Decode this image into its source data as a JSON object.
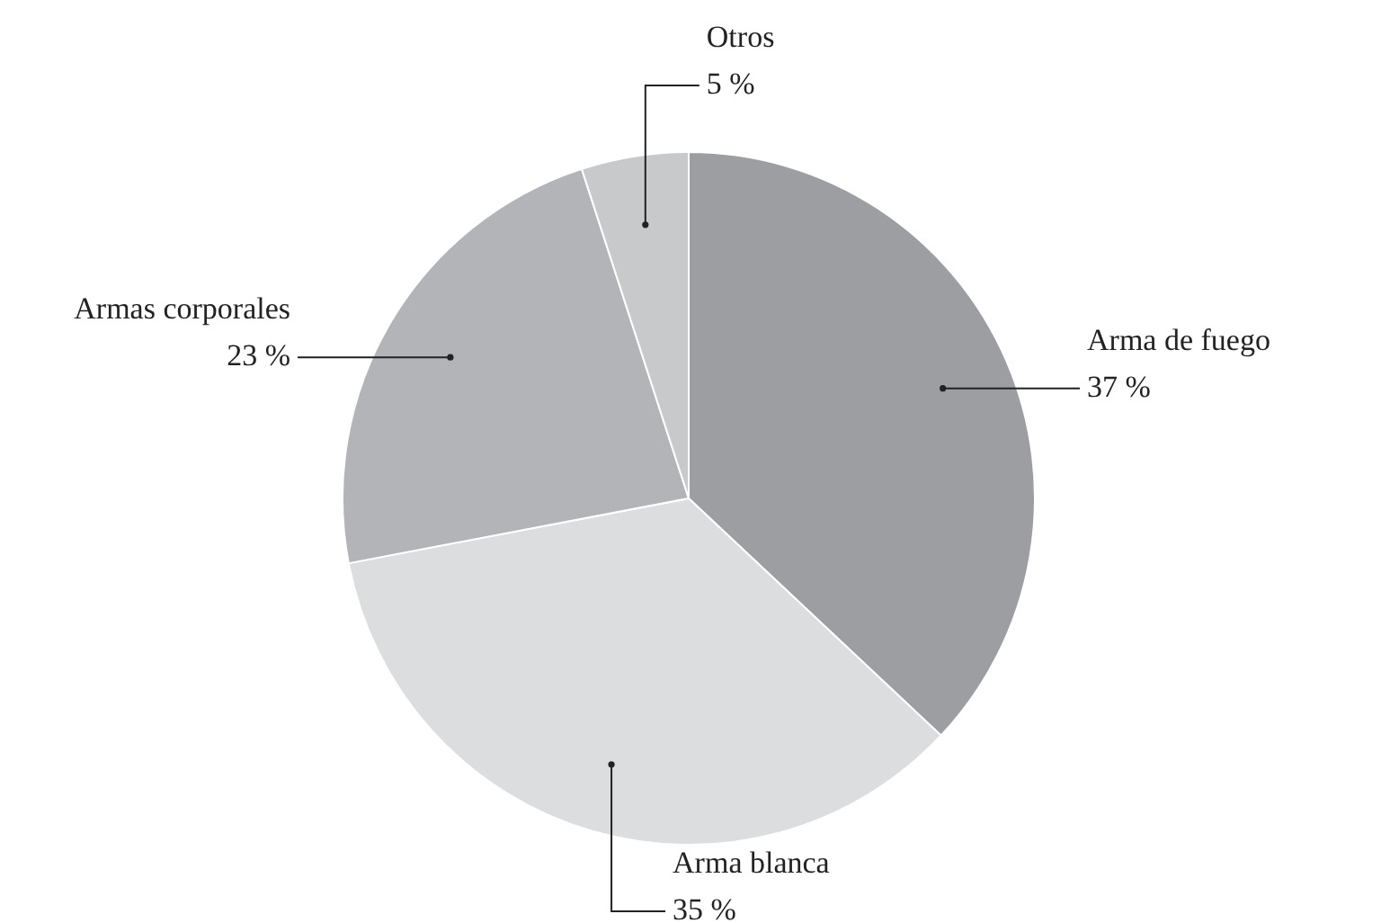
{
  "chart_data": {
    "type": "pie",
    "categories": [
      "Arma de fuego",
      "Arma blanca",
      "Armas corporales",
      "Otros"
    ],
    "values": [
      37,
      35,
      23,
      5
    ],
    "colors": [
      "#9d9ea2",
      "#dcdddf",
      "#b3b4b7",
      "#c8c9cb"
    ],
    "value_labels": [
      "37 %",
      "35 %",
      "23 %",
      "5 %"
    ],
    "legend": false
  }
}
